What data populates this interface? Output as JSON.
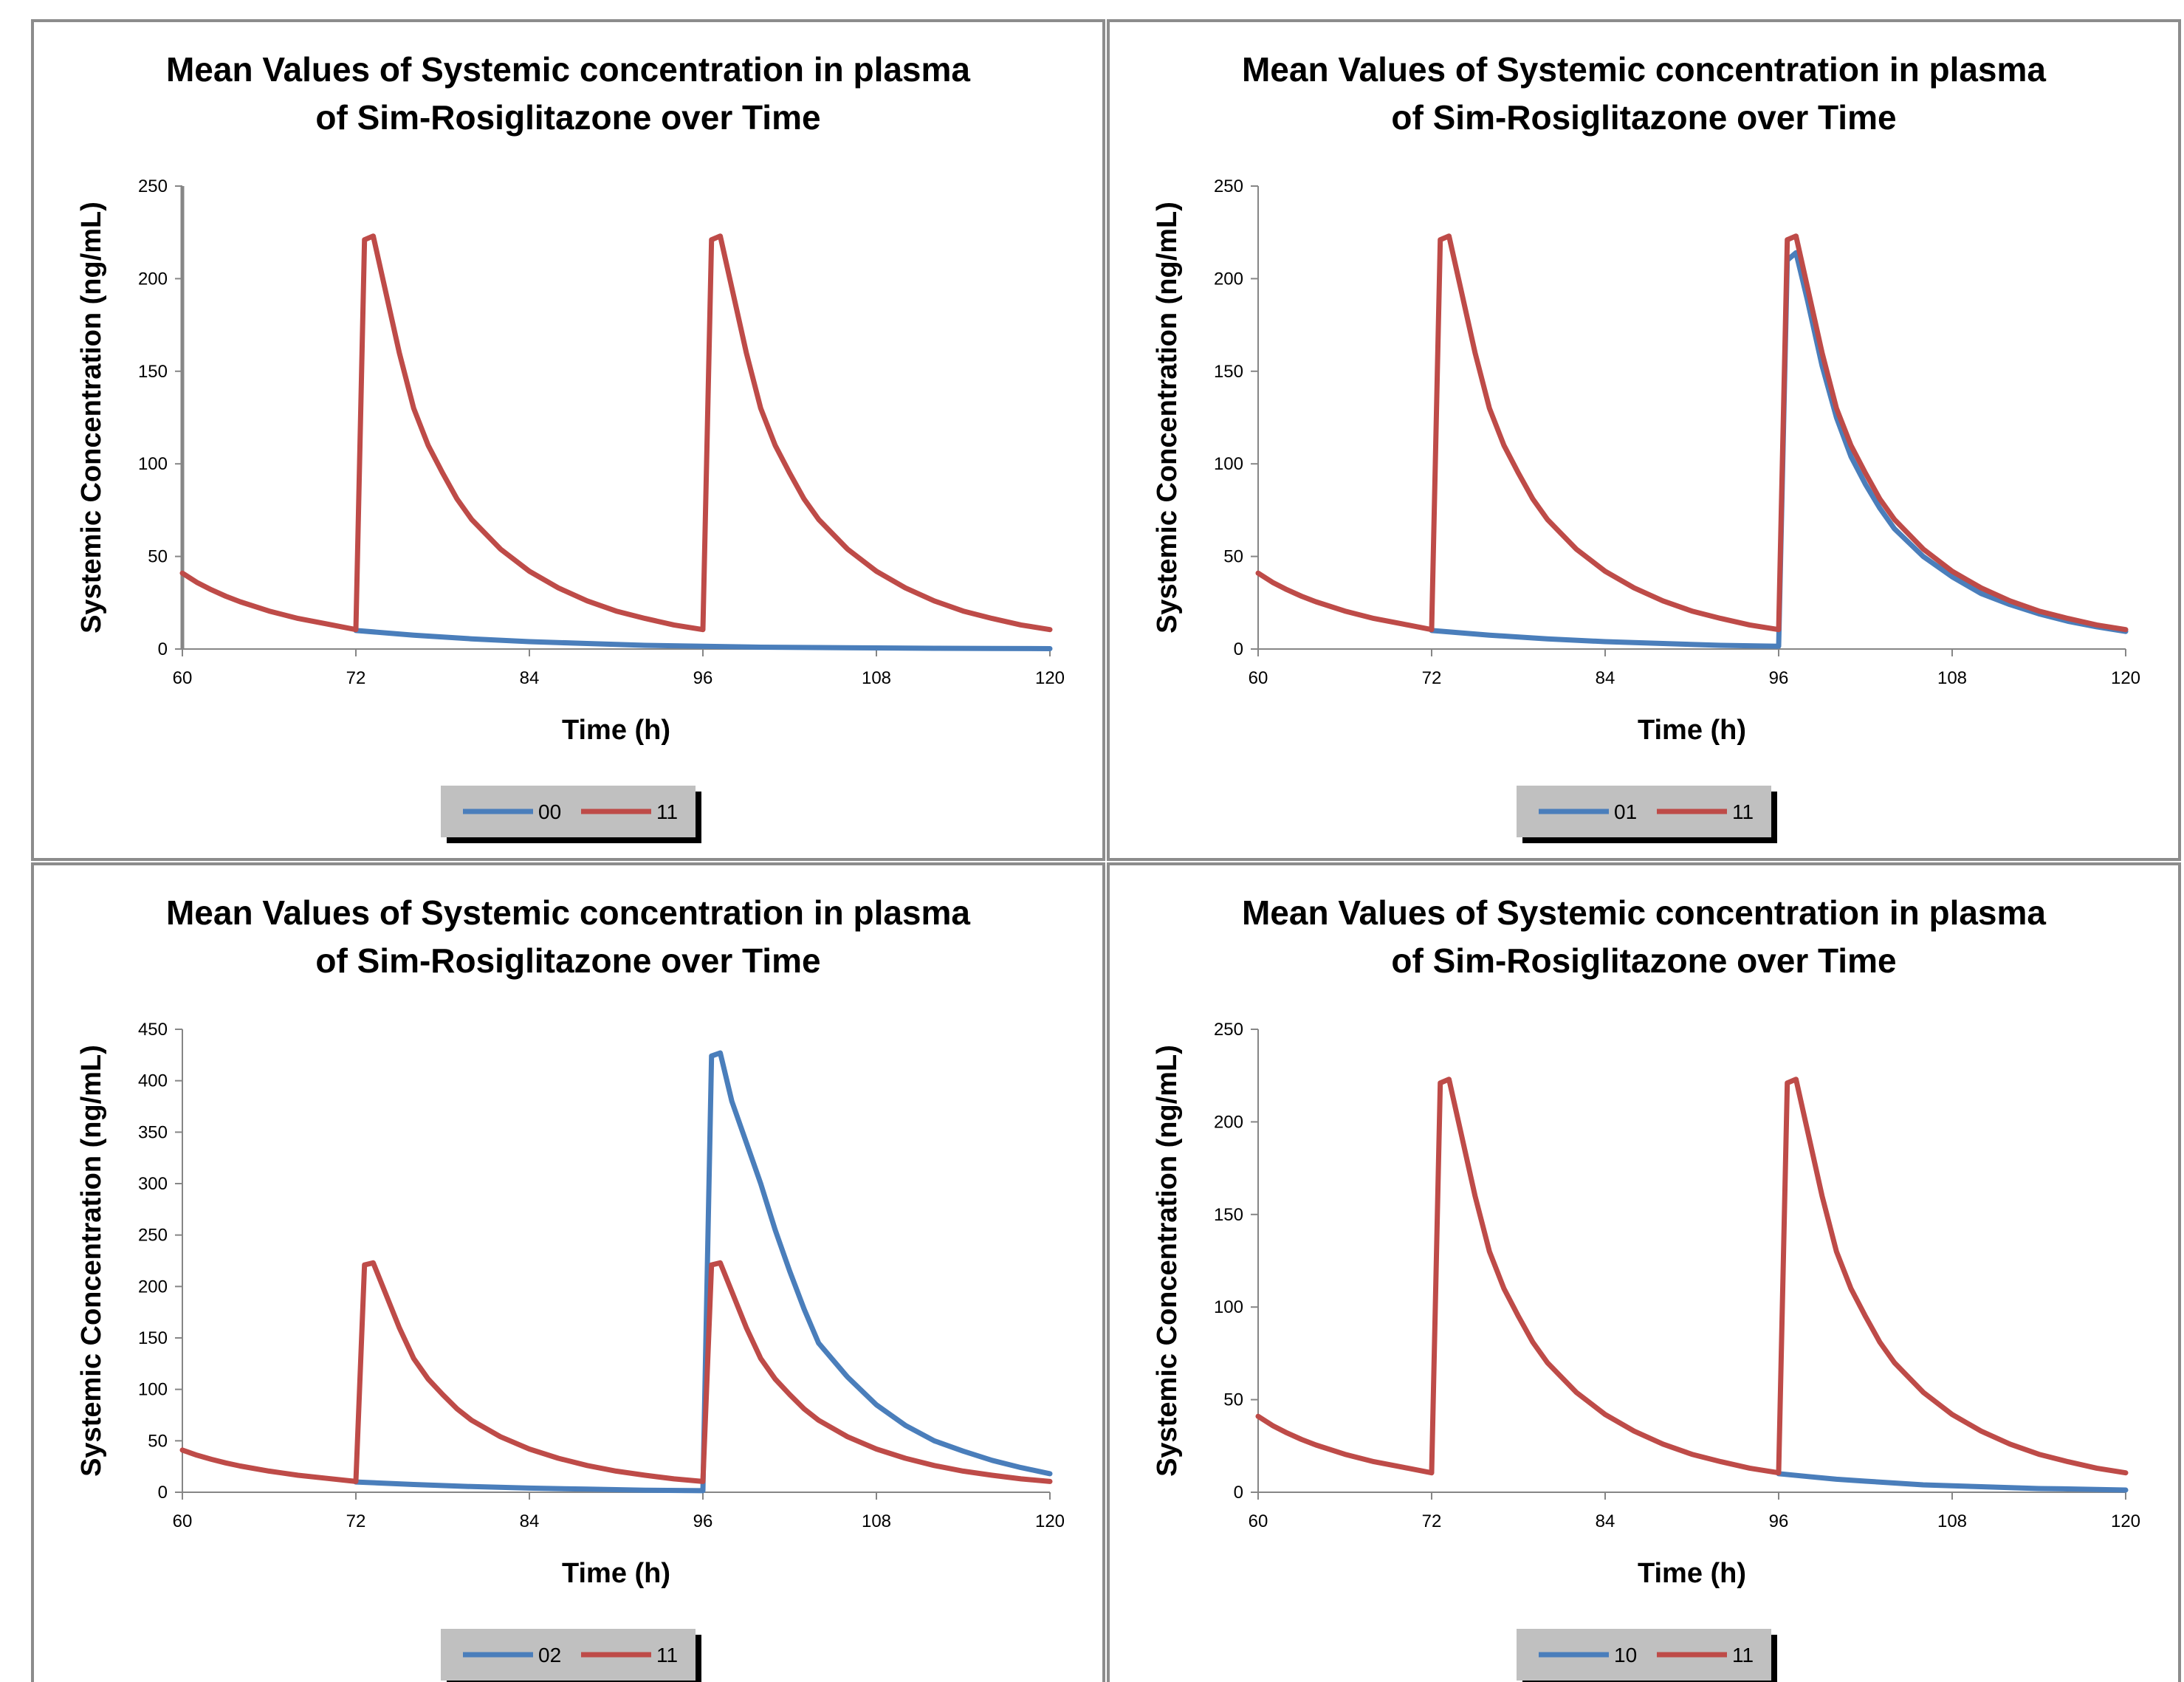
{
  "colors": {
    "series_00": "#4a7ebb",
    "series_11": "#be4b48",
    "frame": "#8c8c8c",
    "legend_bg": "#c0c0c0",
    "legend_shadow": "#000000"
  },
  "chart_data": [
    {
      "type": "line",
      "title_lines": [
        "Mean Values of Systemic concentration in plasma",
        "of Sim-Rosiglitazone over Time"
      ],
      "xlabel": "Time (h)",
      "ylabel": "Systemic Concentration (ng/mL)",
      "xlim": [
        60,
        120
      ],
      "ylim": [
        0,
        250
      ],
      "x_ticks": [
        "60",
        "72",
        "84",
        "96",
        "108",
        "120"
      ],
      "y_ticks": [
        "0",
        "50",
        "100",
        "150",
        "200",
        "250"
      ],
      "grid": false,
      "legend": "bottom-center",
      "series": [
        {
          "name": "00",
          "color": "#4a7ebb",
          "x": [
            72,
            76,
            80,
            84,
            88,
            92,
            96,
            100,
            104,
            108,
            112,
            116,
            120
          ],
          "y": [
            10,
            7.5,
            5.5,
            4,
            3,
            2,
            1.5,
            1,
            0.8,
            0.6,
            0.4,
            0.3,
            0.2
          ]
        },
        {
          "name": "11",
          "color": "#be4b48",
          "x": [
            60,
            61,
            62,
            63,
            64,
            66,
            68,
            70,
            72,
            72.6,
            73.2,
            74,
            75,
            76,
            77,
            78,
            79,
            80,
            82,
            84,
            86,
            88,
            90,
            92,
            94,
            96,
            96.6,
            97.2,
            98,
            99,
            100,
            101,
            102,
            103,
            104,
            106,
            108,
            110,
            112,
            114,
            116,
            118,
            120
          ],
          "y": [
            41,
            36,
            32,
            28.5,
            25.5,
            20.5,
            16.5,
            13.5,
            10.5,
            221,
            223,
            195,
            160,
            130,
            110,
            95,
            81,
            70,
            54,
            42,
            33,
            26,
            20.5,
            16.5,
            13,
            10.5,
            221,
            223,
            195,
            160,
            130,
            110,
            95,
            81,
            70,
            54,
            42,
            33,
            26,
            20.5,
            16.5,
            13,
            10.5
          ]
        }
      ]
    },
    {
      "type": "line",
      "title_lines": [
        "Mean Values of Systemic concentration in plasma",
        "of Sim-Rosiglitazone over Time"
      ],
      "xlabel": "Time (h)",
      "ylabel": "Systemic Concentration (ng/mL)",
      "xlim": [
        60,
        120
      ],
      "ylim": [
        0,
        250
      ],
      "x_ticks": [
        "60",
        "72",
        "84",
        "96",
        "108",
        "120"
      ],
      "y_ticks": [
        "0",
        "50",
        "100",
        "150",
        "200",
        "250"
      ],
      "grid": false,
      "legend": "bottom-center",
      "series": [
        {
          "name": "01",
          "color": "#4a7ebb",
          "x": [
            72,
            76,
            80,
            84,
            88,
            92,
            96,
            96.6,
            97.2,
            98,
            99,
            100,
            101,
            102,
            103,
            104,
            106,
            108,
            110,
            112,
            114,
            116,
            118,
            120
          ],
          "y": [
            10,
            7.5,
            5.5,
            4,
            3,
            2,
            1.5,
            210,
            214,
            188,
            153,
            125,
            104,
            89,
            76,
            65,
            50,
            39,
            30,
            24,
            19,
            15,
            12,
            9.5
          ]
        },
        {
          "name": "11",
          "color": "#be4b48",
          "x": [
            60,
            61,
            62,
            63,
            64,
            66,
            68,
            70,
            72,
            72.6,
            73.2,
            74,
            75,
            76,
            77,
            78,
            79,
            80,
            82,
            84,
            86,
            88,
            90,
            92,
            94,
            96,
            96.6,
            97.2,
            98,
            99,
            100,
            101,
            102,
            103,
            104,
            106,
            108,
            110,
            112,
            114,
            116,
            118,
            120
          ],
          "y": [
            41,
            36,
            32,
            28.5,
            25.5,
            20.5,
            16.5,
            13.5,
            10.5,
            221,
            223,
            195,
            160,
            130,
            110,
            95,
            81,
            70,
            54,
            42,
            33,
            26,
            20.5,
            16.5,
            13,
            10.5,
            221,
            223,
            195,
            160,
            130,
            110,
            95,
            81,
            70,
            54,
            42,
            33,
            26,
            20.5,
            16.5,
            13,
            10.5
          ]
        }
      ]
    },
    {
      "type": "line",
      "title_lines": [
        "Mean Values of Systemic concentration in plasma",
        "of Sim-Rosiglitazone over Time"
      ],
      "xlabel": "Time (h)",
      "ylabel": "Systemic Concentration (ng/mL)",
      "xlim": [
        60,
        120
      ],
      "ylim": [
        0,
        450
      ],
      "x_ticks": [
        "60",
        "72",
        "84",
        "96",
        "108",
        "120"
      ],
      "y_ticks": [
        "0",
        "50",
        "100",
        "150",
        "200",
        "250",
        "300",
        "350",
        "400",
        "450"
      ],
      "grid": false,
      "legend": "bottom-center",
      "series": [
        {
          "name": "02",
          "color": "#4a7ebb",
          "x": [
            72,
            76,
            80,
            84,
            88,
            92,
            96,
            96.6,
            97.2,
            98,
            99,
            100,
            101,
            102,
            103,
            104,
            106,
            108,
            110,
            112,
            114,
            116,
            118,
            120
          ],
          "y": [
            10,
            7.5,
            5.5,
            4,
            3,
            2,
            1.5,
            424,
            427,
            380,
            340,
            300,
            255,
            215,
            178,
            145,
            112,
            85,
            65,
            50,
            40,
            31,
            24,
            18
          ]
        },
        {
          "name": "11",
          "color": "#be4b48",
          "x": [
            60,
            61,
            62,
            63,
            64,
            66,
            68,
            70,
            72,
            72.6,
            73.2,
            74,
            75,
            76,
            77,
            78,
            79,
            80,
            82,
            84,
            86,
            88,
            90,
            92,
            94,
            96,
            96.6,
            97.2,
            98,
            99,
            100,
            101,
            102,
            103,
            104,
            106,
            108,
            110,
            112,
            114,
            116,
            118,
            120
          ],
          "y": [
            41,
            36,
            32,
            28.5,
            25.5,
            20.5,
            16.5,
            13.5,
            10.5,
            221,
            223,
            195,
            160,
            130,
            110,
            95,
            81,
            70,
            54,
            42,
            33,
            26,
            20.5,
            16.5,
            13,
            10.5,
            221,
            223,
            195,
            160,
            130,
            110,
            95,
            81,
            70,
            54,
            42,
            33,
            26,
            20.5,
            16.5,
            13,
            10.5
          ]
        }
      ]
    },
    {
      "type": "line",
      "title_lines": [
        "Mean Values of Systemic concentration in plasma",
        "of Sim-Rosiglitazone over Time"
      ],
      "xlabel": "Time (h)",
      "ylabel": "Systemic Concentration (ng/mL)",
      "xlim": [
        60,
        120
      ],
      "ylim": [
        0,
        250
      ],
      "x_ticks": [
        "60",
        "72",
        "84",
        "96",
        "108",
        "120"
      ],
      "y_ticks": [
        "0",
        "50",
        "100",
        "150",
        "200",
        "250"
      ],
      "grid": false,
      "legend": "bottom-center",
      "series": [
        {
          "name": "10",
          "color": "#4a7ebb",
          "x": [
            96,
            98,
            100,
            102,
            104,
            106,
            108,
            110,
            112,
            114,
            116,
            118,
            120
          ],
          "y": [
            10,
            8.5,
            7,
            6,
            5,
            4,
            3.5,
            3,
            2.5,
            2,
            1.8,
            1.5,
            1.2
          ]
        },
        {
          "name": "11",
          "color": "#be4b48",
          "x": [
            60,
            61,
            62,
            63,
            64,
            66,
            68,
            70,
            72,
            72.6,
            73.2,
            74,
            75,
            76,
            77,
            78,
            79,
            80,
            82,
            84,
            86,
            88,
            90,
            92,
            94,
            96,
            96.6,
            97.2,
            98,
            99,
            100,
            101,
            102,
            103,
            104,
            106,
            108,
            110,
            112,
            114,
            116,
            118,
            120
          ],
          "y": [
            41,
            36,
            32,
            28.5,
            25.5,
            20.5,
            16.5,
            13.5,
            10.5,
            221,
            223,
            195,
            160,
            130,
            110,
            95,
            81,
            70,
            54,
            42,
            33,
            26,
            20.5,
            16.5,
            13,
            10.5,
            221,
            223,
            195,
            160,
            130,
            110,
            95,
            81,
            70,
            54,
            42,
            33,
            26,
            20.5,
            16.5,
            13,
            10.5
          ]
        }
      ]
    }
  ]
}
